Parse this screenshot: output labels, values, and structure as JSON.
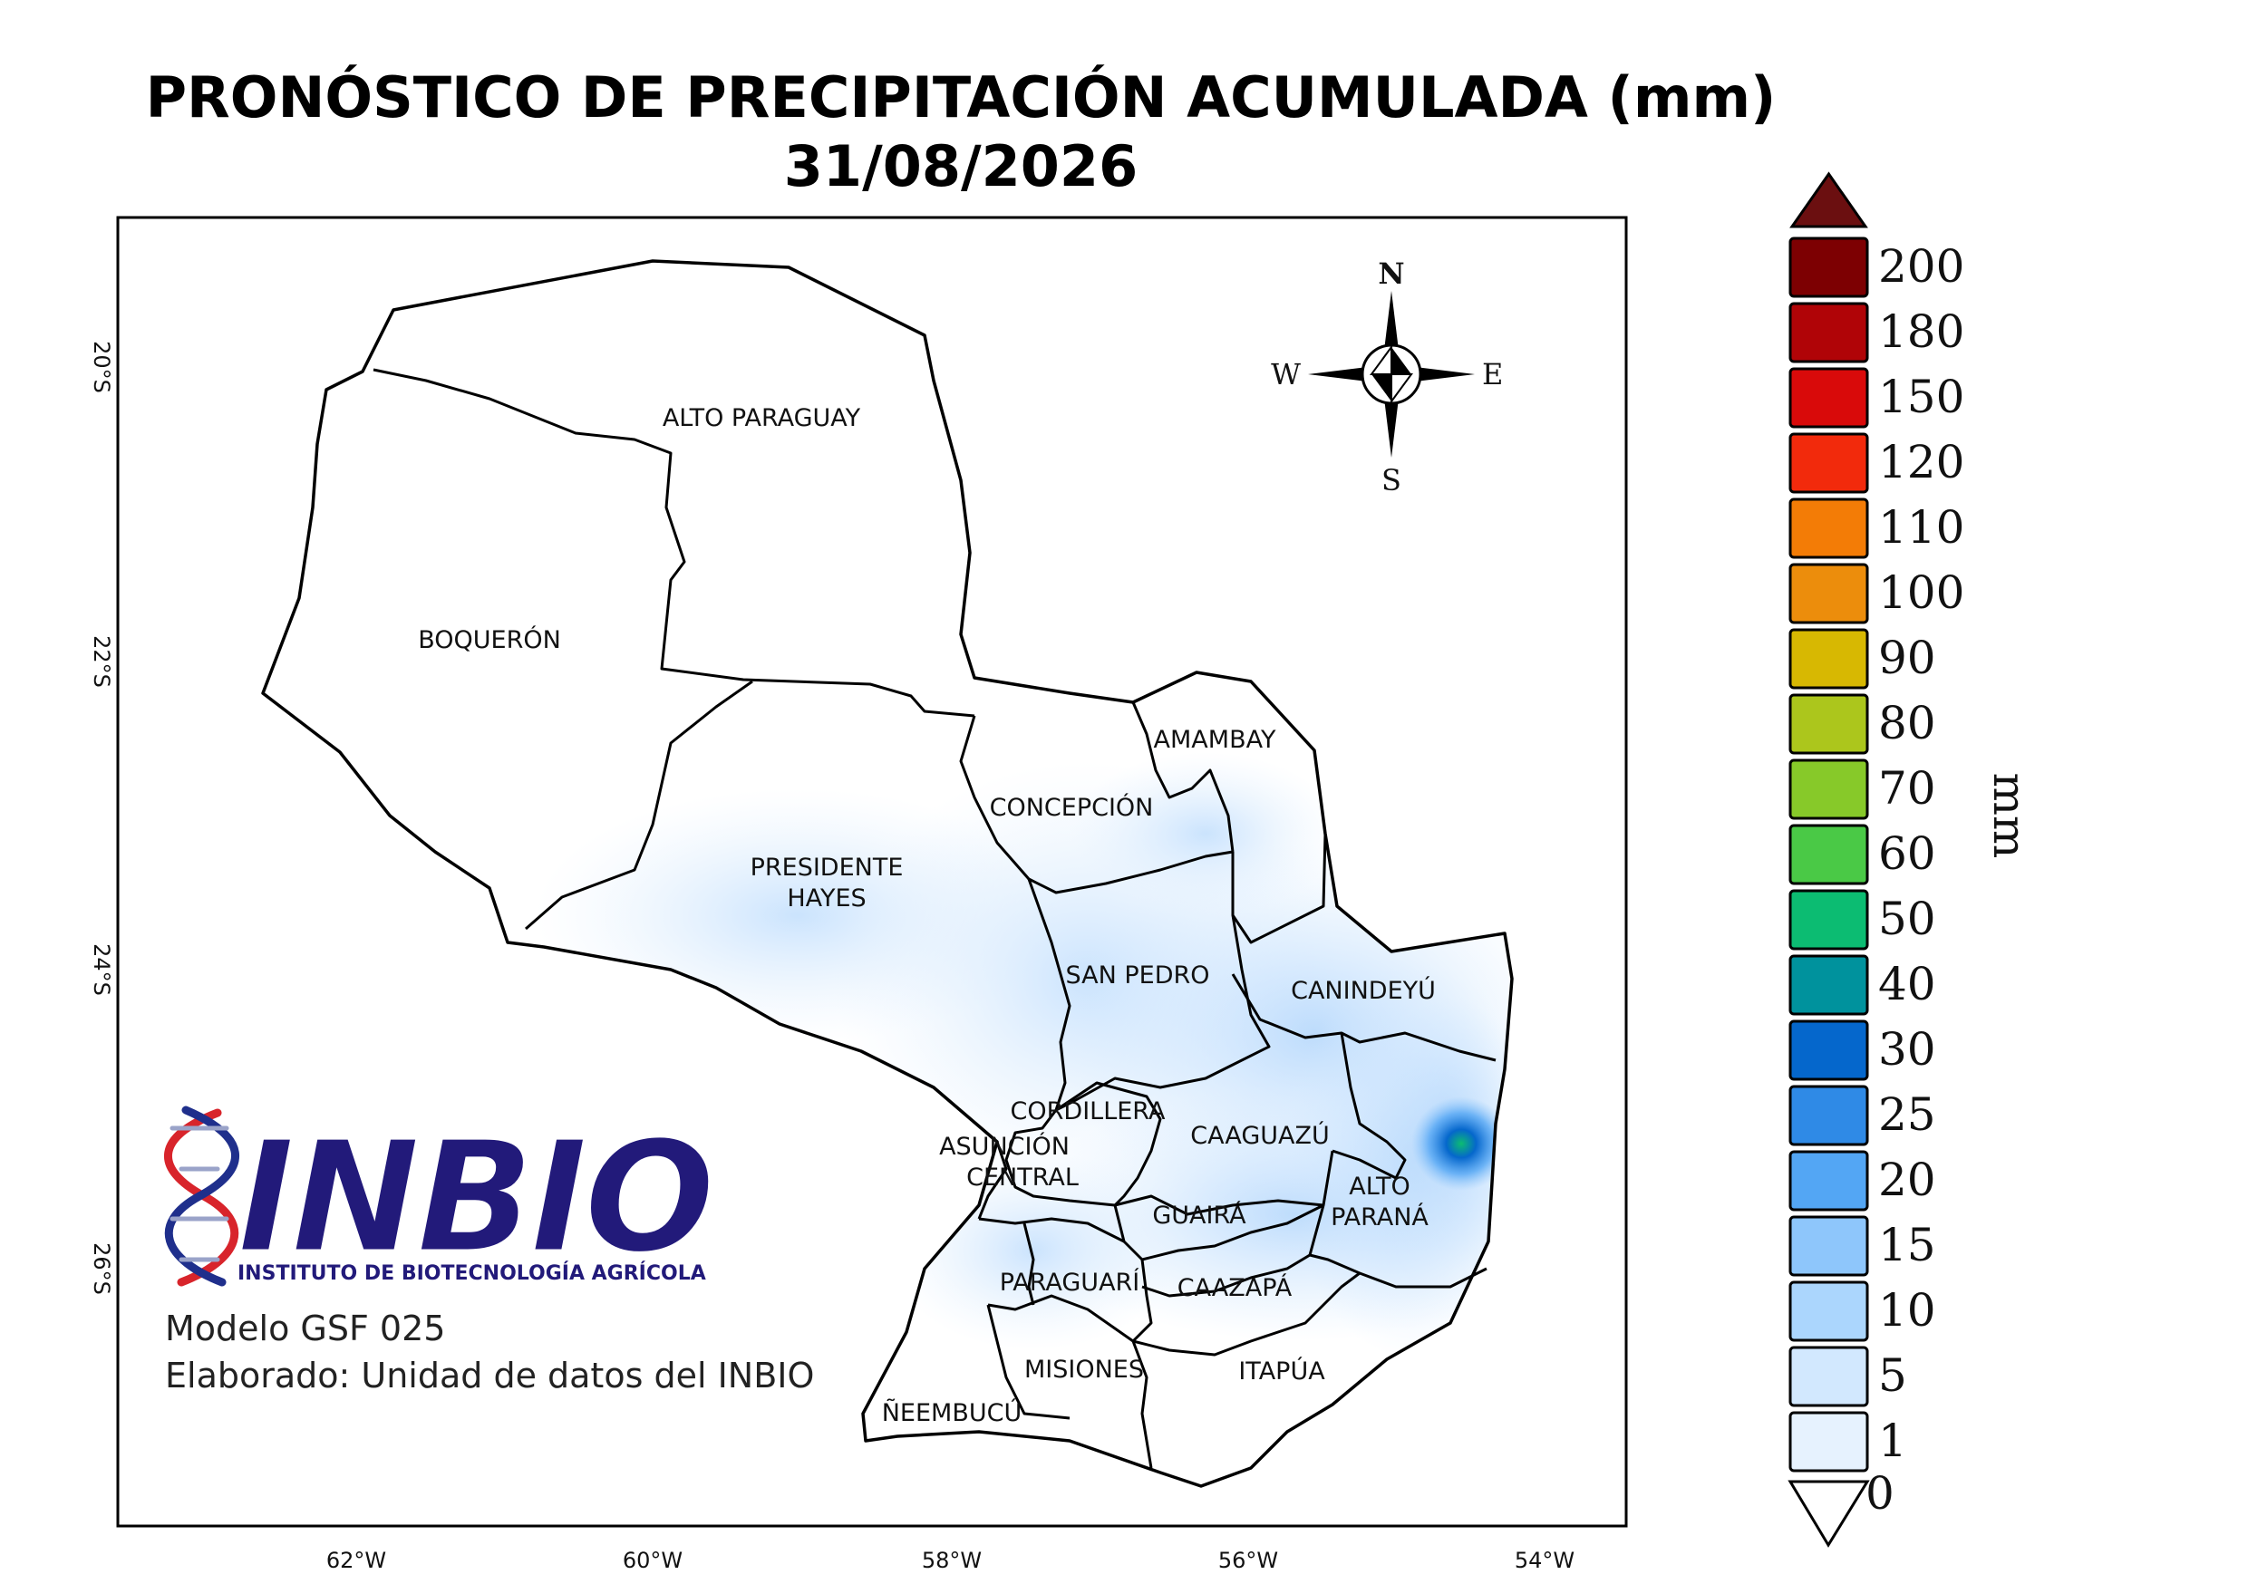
{
  "title": {
    "line1": "PRONÓSTICO DE PRECIPITACIÓN ACUMULADA (mm)",
    "line2": "31/08/2026"
  },
  "axes": {
    "lat_labels": [
      "20°S",
      "22°S",
      "24°S",
      "26°S"
    ],
    "lon_labels": [
      "62°W",
      "60°W",
      "58°W",
      "56°W",
      "54°W"
    ]
  },
  "departments": [
    {
      "id": "alto-paraguay",
      "name": "ALTO PARAGUAY"
    },
    {
      "id": "boqueron",
      "name": "BOQUERÓN"
    },
    {
      "id": "presidente-hayes-1",
      "name": "PRESIDENTE"
    },
    {
      "id": "presidente-hayes-2",
      "name": "HAYES"
    },
    {
      "id": "concepcion",
      "name": "CONCEPCIÓN"
    },
    {
      "id": "amambay",
      "name": "AMAMBAY"
    },
    {
      "id": "san-pedro",
      "name": "SAN PEDRO"
    },
    {
      "id": "canindeyu",
      "name": "CANINDEYÚ"
    },
    {
      "id": "cordillera",
      "name": "CORDILLERA"
    },
    {
      "id": "asuncion",
      "name": "ASUNCIÓN"
    },
    {
      "id": "central",
      "name": "CENTRAL"
    },
    {
      "id": "caaguazu",
      "name": "CAAGUAZÚ"
    },
    {
      "id": "alto-parana-1",
      "name": "ALTO"
    },
    {
      "id": "alto-parana-2",
      "name": "PARANÁ"
    },
    {
      "id": "guaira",
      "name": "GUAIRÁ"
    },
    {
      "id": "paraguari",
      "name": "PARAGUARÍ"
    },
    {
      "id": "caazapa",
      "name": "CAAZAPÁ"
    },
    {
      "id": "misiones",
      "name": "MISIONES"
    },
    {
      "id": "itapua",
      "name": "ITAPÚA"
    },
    {
      "id": "neembucu",
      "name": "ÑEEMBUCÚ"
    }
  ],
  "compass": {
    "n": "N",
    "s": "S",
    "e": "E",
    "w": "W"
  },
  "colorbar": {
    "unit": "mm",
    "over_color": "#6b0f10",
    "under_label": "0",
    "under_color": "#ffffff",
    "levels": [
      {
        "label": "200",
        "color": "#7d0002"
      },
      {
        "label": "180",
        "color": "#b00407"
      },
      {
        "label": "150",
        "color": "#d90a0a"
      },
      {
        "label": "120",
        "color": "#f22a0c"
      },
      {
        "label": "110",
        "color": "#f37c06"
      },
      {
        "label": "100",
        "color": "#ec8d0c"
      },
      {
        "label": "90",
        "color": "#d7b802"
      },
      {
        "label": "80",
        "color": "#acc61c"
      },
      {
        "label": "70",
        "color": "#87c929"
      },
      {
        "label": "60",
        "color": "#4ac946"
      },
      {
        "label": "50",
        "color": "#0cbc72"
      },
      {
        "label": "40",
        "color": "#00929d"
      },
      {
        "label": "30",
        "color": "#0567cc"
      },
      {
        "label": "25",
        "color": "#2f8ae6"
      },
      {
        "label": "20",
        "color": "#53a6f4"
      },
      {
        "label": "15",
        "color": "#8ec6fb"
      },
      {
        "label": "10",
        "color": "#abd6fd"
      },
      {
        "label": "5",
        "color": "#d2e8fe"
      },
      {
        "label": "1",
        "color": "#e6f2fe"
      }
    ]
  },
  "logo": {
    "text": "INBIO",
    "subtitle": "INSTITUTO DE BIOTECNOLOGÍA AGRÍCOLA",
    "text_color": "#221a7a",
    "helix_colors": [
      "#d8242b",
      "#1f2f8c"
    ]
  },
  "credit": {
    "model": "Modelo GSF 025",
    "made_by": "Elaborado: Unidad de datos del INBIO"
  }
}
